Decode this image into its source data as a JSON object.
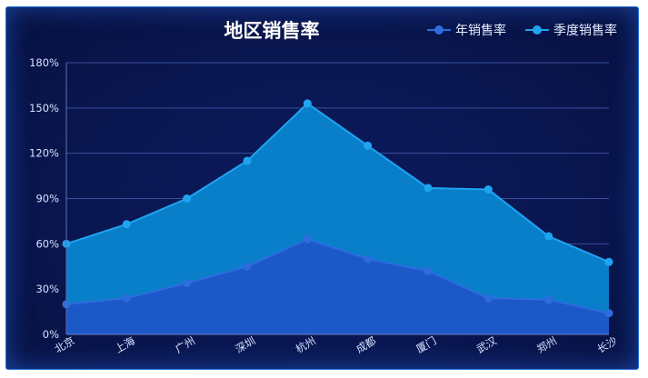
{
  "chart_data": {
    "type": "area",
    "title": "地区销售率",
    "xlabel": "",
    "ylabel": "",
    "categories": [
      "北京",
      "上海",
      "广州",
      "深圳",
      "杭州",
      "成都",
      "厦门",
      "武汉",
      "郑州",
      "长沙"
    ],
    "ylim": [
      0,
      180
    ],
    "yticks": [
      0,
      30,
      60,
      90,
      120,
      150,
      180
    ],
    "ytick_labels": [
      "0%",
      "30%",
      "60%",
      "90%",
      "120%",
      "150%",
      "180%"
    ],
    "grid": true,
    "legend_position": "top-right",
    "series": [
      {
        "name": "年销售率",
        "values": [
          20,
          24,
          34,
          45,
          63,
          50,
          42,
          24,
          23,
          14
        ],
        "color": "#2d6cdf",
        "fill": "#1e56c8"
      },
      {
        "name": "季度销售率",
        "values": [
          60,
          73,
          90,
          115,
          153,
          125,
          97,
          96,
          65,
          48
        ],
        "color": "#1fa4f0",
        "fill": "#0a85d0"
      }
    ]
  }
}
